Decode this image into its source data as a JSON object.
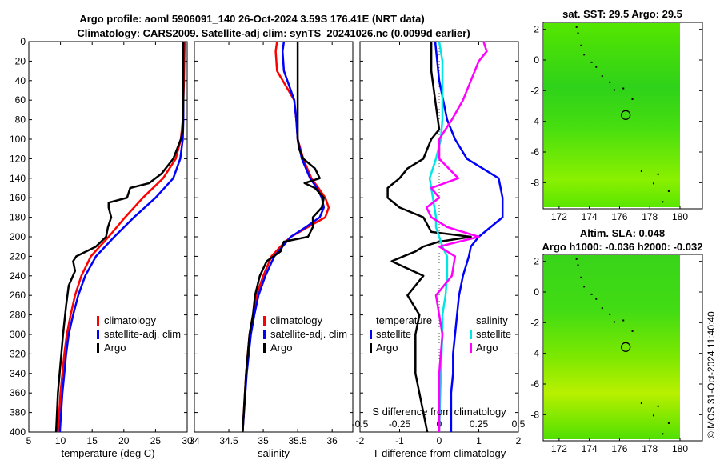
{
  "header": {
    "title_line1": "Argo profile: aoml 5906091_140 26-Oct-2024 3.59S 176.41E (NRT data)",
    "title_line2": "Climatology: CARS2009. Satellite-adj clim: synTS_20241026.nc (0.0099d earlier)"
  },
  "depth_axis": {
    "ylim": [
      0,
      400
    ],
    "ticks": [
      "0",
      "20",
      "40",
      "60",
      "80",
      "100",
      "120",
      "140",
      "160",
      "180",
      "200",
      "220",
      "240",
      "260",
      "280",
      "300",
      "320",
      "340",
      "360",
      "380",
      "400"
    ]
  },
  "colors": {
    "climatology": "#ff0000",
    "satellite": "#0000ff",
    "argo": "#000000",
    "sat_s": "#00e5e5",
    "argo_s": "#ff00ff"
  },
  "chart_data": [
    {
      "type": "line",
      "name": "temperature",
      "xlabel": "temperature (deg C)",
      "xlim": [
        5,
        30
      ],
      "xticks": [
        "5",
        "10",
        "15",
        "20",
        "25",
        "30"
      ],
      "legend": [
        "climatology",
        "satellite-adj. clim",
        "Argo"
      ],
      "series": [
        {
          "name": "climatology",
          "depth": [
            0,
            40,
            80,
            100,
            120,
            140,
            160,
            180,
            200,
            220,
            240,
            260,
            280,
            300,
            320,
            340,
            360,
            380,
            400
          ],
          "values": [
            29.6,
            29.5,
            29.3,
            29.0,
            28.2,
            26.2,
            23.0,
            20.2,
            17.6,
            14.8,
            13.3,
            12.3,
            11.6,
            11.0,
            10.6,
            10.3,
            10.0,
            9.8,
            9.6
          ]
        },
        {
          "name": "satellite-adj. clim",
          "depth": [
            0,
            40,
            80,
            100,
            120,
            140,
            160,
            180,
            200,
            220,
            240,
            260,
            280,
            300,
            320,
            340,
            360,
            380,
            400
          ],
          "values": [
            29.4,
            29.4,
            29.4,
            29.3,
            28.9,
            27.8,
            25.0,
            21.6,
            18.5,
            15.6,
            13.9,
            12.8,
            12.0,
            11.3,
            10.9,
            10.6,
            10.3,
            10.1,
            9.9
          ]
        },
        {
          "name": "Argo",
          "depth": [
            0,
            60,
            90,
            100,
            120,
            135,
            145,
            150,
            160,
            165,
            170,
            180,
            190,
            200,
            210,
            220,
            225,
            235,
            250,
            270,
            300,
            330,
            360,
            400
          ],
          "values": [
            29.4,
            29.4,
            29.3,
            29.0,
            27.8,
            26.0,
            24.0,
            21.0,
            20.5,
            17.6,
            17.6,
            18.0,
            17.5,
            17.2,
            15.6,
            12.5,
            12.0,
            12.3,
            11.3,
            10.9,
            10.4,
            10.0,
            9.6,
            9.3
          ]
        }
      ]
    },
    {
      "type": "line",
      "name": "salinity",
      "xlabel": "salinity",
      "xlim": [
        34,
        36.3
      ],
      "xticks": [
        "34",
        "34.5",
        "35",
        "35.5",
        "36"
      ],
      "legend": [
        "climatology",
        "satellite-adj. clim",
        "Argo"
      ],
      "series": [
        {
          "name": "climatology",
          "depth": [
            0,
            10,
            30,
            60,
            80,
            100,
            120,
            140,
            150,
            160,
            170,
            180,
            190,
            200,
            210,
            220,
            240,
            260,
            280,
            300,
            340,
            400
          ],
          "values": [
            35.2,
            35.18,
            35.2,
            35.45,
            35.48,
            35.5,
            35.58,
            35.7,
            35.8,
            35.9,
            35.95,
            35.9,
            35.65,
            35.4,
            35.25,
            35.12,
            35.0,
            34.9,
            34.85,
            34.8,
            34.75,
            34.7
          ]
        },
        {
          "name": "satellite-adj. clim",
          "depth": [
            0,
            10,
            30,
            60,
            80,
            100,
            120,
            140,
            150,
            160,
            170,
            180,
            190,
            200,
            210,
            220,
            240,
            260,
            280,
            300,
            340,
            400
          ],
          "values": [
            35.3,
            35.28,
            35.3,
            35.45,
            35.48,
            35.5,
            35.56,
            35.68,
            35.78,
            35.85,
            35.88,
            35.82,
            35.62,
            35.4,
            35.28,
            35.16,
            35.03,
            34.93,
            34.87,
            34.82,
            34.76,
            34.7
          ]
        },
        {
          "name": "Argo",
          "depth": [
            0,
            80,
            100,
            110,
            120,
            130,
            140,
            145,
            150,
            160,
            170,
            180,
            190,
            200,
            205,
            215,
            225,
            240,
            260,
            280,
            300,
            340,
            400
          ],
          "values": [
            35.5,
            35.5,
            35.5,
            35.52,
            35.58,
            35.75,
            35.82,
            35.6,
            35.75,
            35.88,
            35.85,
            35.72,
            35.72,
            35.65,
            35.3,
            35.25,
            35.05,
            34.95,
            34.88,
            34.85,
            34.8,
            34.75,
            34.7
          ]
        }
      ]
    },
    {
      "type": "line",
      "name": "differences",
      "xlabel": "T difference from climatology",
      "xlabel_top": "S difference from climatology",
      "xlim": [
        -2,
        2
      ],
      "xticks": [
        "-2",
        "-1",
        "0",
        "1",
        "2"
      ],
      "s_xticks": [
        "-0.5",
        "-0.25",
        "0",
        "0.25",
        "0.5"
      ],
      "legend_t_title": "temperature",
      "legend_s_title": "salinity",
      "legend": [
        "satellite",
        "Argo",
        "satellite",
        "Argo"
      ],
      "series": [
        {
          "name": "T satellite",
          "depth": [
            0,
            40,
            80,
            100,
            120,
            140,
            160,
            180,
            200,
            210,
            220,
            240,
            260,
            280,
            300,
            320,
            340,
            360,
            400
          ],
          "values": [
            -0.1,
            0,
            0.2,
            0.4,
            0.7,
            1.5,
            1.6,
            1.6,
            1.0,
            0.8,
            0.75,
            0.6,
            0.5,
            0.45,
            0.4,
            0.35,
            0.35,
            0.3,
            0.3
          ]
        },
        {
          "name": "T Argo",
          "depth": [
            0,
            30,
            60,
            90,
            100,
            120,
            130,
            140,
            150,
            160,
            170,
            180,
            195,
            200,
            205,
            210,
            215,
            225,
            240,
            250,
            260,
            280,
            300,
            340,
            400
          ],
          "values": [
            -0.2,
            -0.2,
            -0.1,
            0,
            -0.2,
            -0.4,
            -0.8,
            -1.0,
            -1.3,
            -1.3,
            -1.0,
            -0.4,
            -0.2,
            0.8,
            0,
            -0.4,
            -0.6,
            -1.2,
            -0.4,
            -0.6,
            -0.8,
            -0.5,
            -0.6,
            -0.6,
            -0.3
          ]
        },
        {
          "name": "S satellite",
          "depth": [
            0,
            20,
            40,
            60,
            80,
            100,
            120,
            140,
            160,
            180,
            190,
            200,
            210,
            220,
            240,
            260,
            280,
            300,
            340,
            400
          ],
          "values": [
            0,
            0.02,
            0.02,
            0.02,
            0.02,
            0.01,
            -0.02,
            -0.06,
            -0.04,
            -0.02,
            -0.02,
            0,
            0.02,
            0.05,
            0.05,
            0.04,
            0.02,
            0.02,
            0.01,
            0
          ]
        },
        {
          "name": "S Argo",
          "depth": [
            0,
            10,
            20,
            40,
            60,
            80,
            100,
            120,
            140,
            150,
            160,
            170,
            180,
            190,
            200,
            210,
            220,
            240,
            260,
            280,
            300,
            340,
            400
          ],
          "values": [
            0.28,
            0.3,
            0.25,
            0.2,
            0.15,
            0.08,
            0,
            0,
            0.12,
            -0.05,
            0,
            -0.08,
            -0.05,
            0.05,
            0.25,
            0,
            0.1,
            0.08,
            -0.02,
            0,
            0.02,
            0,
            0
          ]
        }
      ]
    }
  ],
  "maps": {
    "sst": {
      "title": "sat. SST: 29.5 Argo: 29.5"
    },
    "sla": {
      "title1": "Altim. SLA: 0.048",
      "title2": "Argo h1000: -0.036 h2000: -0.032"
    },
    "xticks": [
      "172",
      "174",
      "176",
      "178",
      "180"
    ],
    "yticks": [
      "2",
      "0",
      "-2",
      "-4",
      "-6",
      "-8"
    ]
  },
  "credit": "©IMOS 31-Oct-2024 11:40:40"
}
